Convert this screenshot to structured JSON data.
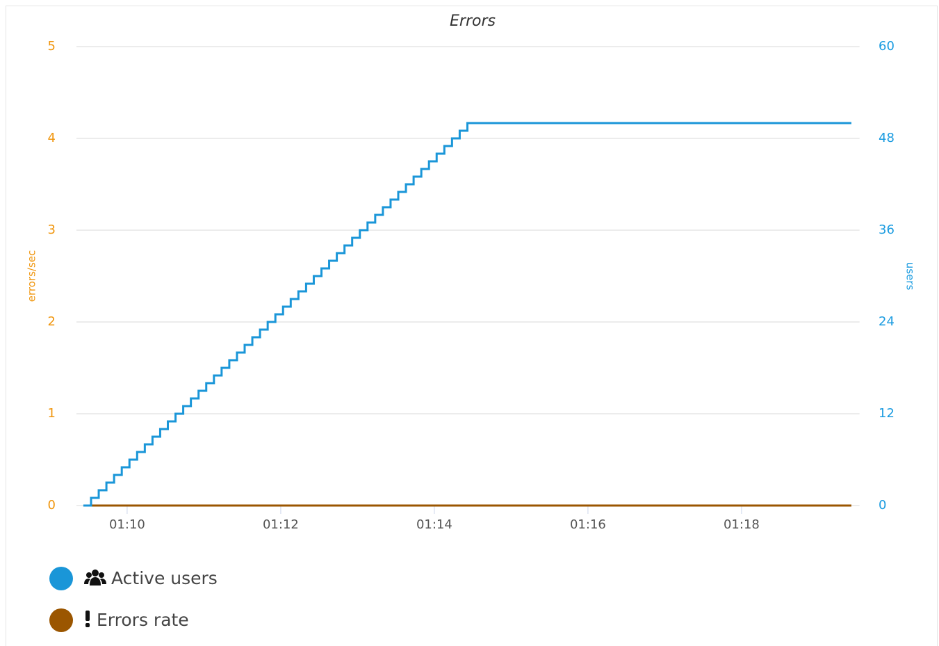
{
  "chart_data": {
    "type": "line",
    "title": "Errors",
    "y_label": "errors/sec",
    "y2_label": "users",
    "x": [
      69.43,
      69.53,
      69.63,
      69.73,
      69.83,
      69.93,
      70.03,
      70.13,
      70.23,
      70.33,
      70.43,
      70.53,
      70.63,
      70.73,
      70.83,
      70.93,
      71.03,
      71.13,
      71.23,
      71.33,
      71.43,
      71.53,
      71.63,
      71.73,
      71.83,
      71.93,
      72.03,
      72.13,
      72.23,
      72.33,
      72.43,
      72.53,
      72.63,
      72.73,
      72.83,
      72.93,
      73.03,
      73.13,
      73.23,
      73.33,
      73.43,
      73.53,
      73.63,
      73.73,
      73.83,
      73.93,
      74.03,
      74.13,
      74.23,
      74.33,
      74.43,
      79.43
    ],
    "xlim": [
      69.34,
      79.53
    ],
    "xticks": [
      {
        "value": 70,
        "label": "01:10"
      },
      {
        "value": 72,
        "label": "01:12"
      },
      {
        "value": 74,
        "label": "01:14"
      },
      {
        "value": 76,
        "label": "01:16"
      },
      {
        "value": 78,
        "label": "01:18"
      }
    ],
    "ylim": [
      0,
      5
    ],
    "yticks": [
      0,
      1,
      2,
      3,
      4,
      5
    ],
    "y2lim": [
      0,
      60
    ],
    "y2ticks": [
      0,
      12,
      24,
      36,
      48,
      60
    ],
    "grid": true,
    "step": "after",
    "legend": "bottom-left",
    "series": [
      {
        "name": "Active users",
        "color": "#1a96d8",
        "axis": "y2",
        "values": [
          0,
          1,
          2,
          3,
          4,
          5,
          6,
          7,
          8,
          9,
          10,
          11,
          12,
          13,
          14,
          15,
          16,
          17,
          18,
          19,
          20,
          21,
          22,
          23,
          24,
          25,
          26,
          27,
          28,
          29,
          30,
          31,
          32,
          33,
          34,
          35,
          36,
          37,
          38,
          39,
          40,
          41,
          42,
          43,
          44,
          45,
          46,
          47,
          48,
          49,
          50,
          50
        ]
      },
      {
        "name": "Errors rate",
        "color": "#9b5600",
        "axis": "y",
        "values": [
          0,
          0,
          0,
          0,
          0,
          0,
          0,
          0,
          0,
          0,
          0,
          0,
          0,
          0,
          0,
          0,
          0,
          0,
          0,
          0,
          0,
          0,
          0,
          0,
          0,
          0,
          0,
          0,
          0,
          0,
          0,
          0,
          0,
          0,
          0,
          0,
          0,
          0,
          0,
          0,
          0,
          0,
          0,
          0,
          0,
          0,
          0,
          0,
          0,
          0,
          0,
          0
        ]
      }
    ]
  }
}
